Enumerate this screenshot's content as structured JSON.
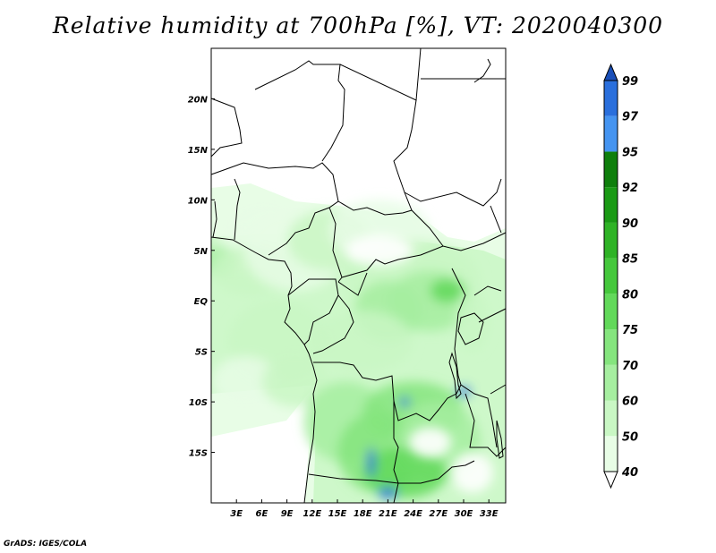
{
  "title": "Relative humidity at 700hPa [%], VT: 2020040300",
  "credit": "GrADS: IGES/COLA",
  "map": {
    "lon_ticks": [
      "3E",
      "6E",
      "9E",
      "12E",
      "15E",
      "18E",
      "21E",
      "24E",
      "27E",
      "30E",
      "33E"
    ],
    "lat_ticks": [
      "20N",
      "15N",
      "10N",
      "5N",
      "EQ",
      "5S",
      "10S",
      "15S"
    ],
    "lon_values": [
      3,
      6,
      9,
      12,
      15,
      18,
      21,
      24,
      27,
      30,
      33
    ],
    "lat_values": [
      20,
      15,
      10,
      5,
      0,
      -5,
      -10,
      -15
    ],
    "lon_range": [
      0,
      35
    ],
    "lat_range": [
      -20,
      25
    ],
    "boundary_color": "#000000"
  },
  "colorbar": {
    "labels": [
      "99",
      "97",
      "95",
      "92",
      "90",
      "85",
      "80",
      "75",
      "70",
      "60",
      "50",
      "40"
    ],
    "levels": [
      40,
      50,
      60,
      70,
      75,
      80,
      85,
      90,
      92,
      95,
      97,
      99
    ],
    "colors": [
      "#ffffff",
      "#e8fde6",
      "#c9f7c4",
      "#a6eea0",
      "#85e57e",
      "#62d95a",
      "#45c83c",
      "#2fb326",
      "#1a9a15",
      "#0f7f0c",
      "#4594f0",
      "#2a6fdc",
      "#1a4fb8"
    ]
  },
  "humidity_patches": [
    {
      "lon": 3,
      "lat": 5,
      "rx": 2.5,
      "ry": 2.2,
      "level": 1
    },
    {
      "lon": 1,
      "lat": 4,
      "rx": 2.0,
      "ry": 1.5,
      "level": 3
    },
    {
      "lon": 6,
      "lat": 7,
      "rx": 4.5,
      "ry": 3.0,
      "level": 1
    },
    {
      "lon": 5,
      "lat": 3,
      "rx": 5.0,
      "ry": 2.5,
      "level": 2
    },
    {
      "lon": 10,
      "lat": 5,
      "rx": 6.0,
      "ry": 4.0,
      "level": 1
    },
    {
      "lon": 14,
      "lat": 6,
      "rx": 5.0,
      "ry": 3.0,
      "level": 2
    },
    {
      "lon": 20,
      "lat": 7,
      "rx": 6.0,
      "ry": 3.0,
      "level": 1
    },
    {
      "lon": 24,
      "lat": 2,
      "rx": 8.0,
      "ry": 4.0,
      "level": 2
    },
    {
      "lon": 26,
      "lat": 0,
      "rx": 5.0,
      "ry": 3.0,
      "level": 3
    },
    {
      "lon": 28,
      "lat": 1,
      "rx": 2.0,
      "ry": 1.2,
      "level": 5
    },
    {
      "lon": 21,
      "lat": -1,
      "rx": 4.0,
      "ry": 3.0,
      "level": 3
    },
    {
      "lon": 18,
      "lat": -4,
      "rx": 6.0,
      "ry": 3.0,
      "level": 2
    },
    {
      "lon": 8,
      "lat": -4,
      "rx": 6.0,
      "ry": 4.0,
      "level": 2
    },
    {
      "lon": 4,
      "lat": -8,
      "rx": 4.0,
      "ry": 2.5,
      "level": 1
    },
    {
      "lon": 10,
      "lat": -8,
      "rx": 4.0,
      "ry": 2.5,
      "level": 2
    },
    {
      "lon": 16,
      "lat": -12,
      "rx": 5.0,
      "ry": 4.0,
      "level": 3
    },
    {
      "lon": 20,
      "lat": -15,
      "rx": 5.0,
      "ry": 4.0,
      "level": 4
    },
    {
      "lon": 24,
      "lat": -11,
      "rx": 6.0,
      "ry": 3.0,
      "level": 4
    },
    {
      "lon": 27,
      "lat": -14,
      "rx": 5.0,
      "ry": 4.0,
      "level": 3
    },
    {
      "lon": 23,
      "lat": -17,
      "rx": 5.0,
      "ry": 2.5,
      "level": 5
    },
    {
      "lon": 19,
      "lat": -16,
      "rx": 0.5,
      "ry": 1.5,
      "level": 11
    },
    {
      "lon": 23,
      "lat": -10,
      "rx": 0.6,
      "ry": 0.5,
      "level": 11
    },
    {
      "lon": 30,
      "lat": -9,
      "rx": 0.8,
      "ry": 0.5,
      "level": 11
    },
    {
      "lon": 21,
      "lat": -19,
      "rx": 1.2,
      "ry": 0.6,
      "level": 11
    },
    {
      "lon": 31,
      "lat": -2,
      "rx": 2.0,
      "ry": 3.0,
      "level": 2
    }
  ],
  "white_patches": [
    {
      "lon": 26,
      "lat": -14,
      "rx": 2.5,
      "ry": 1.5
    },
    {
      "lon": 31,
      "lat": -17,
      "rx": 2.5,
      "ry": 2.0
    },
    {
      "lon": 20,
      "lat": 5,
      "rx": 4.0,
      "ry": 1.5
    }
  ]
}
